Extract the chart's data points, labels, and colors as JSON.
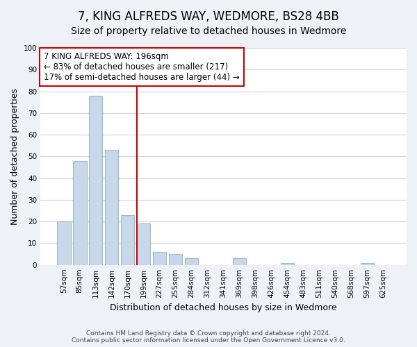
{
  "title": "7, KING ALFREDS WAY, WEDMORE, BS28 4BB",
  "subtitle": "Size of property relative to detached houses in Wedmore",
  "xlabel": "Distribution of detached houses by size in Wedmore",
  "ylabel": "Number of detached properties",
  "bar_labels": [
    "57sqm",
    "85sqm",
    "113sqm",
    "142sqm",
    "170sqm",
    "199sqm",
    "227sqm",
    "255sqm",
    "284sqm",
    "312sqm",
    "341sqm",
    "369sqm",
    "398sqm",
    "426sqm",
    "454sqm",
    "483sqm",
    "511sqm",
    "540sqm",
    "568sqm",
    "597sqm",
    "625sqm"
  ],
  "bar_values": [
    20,
    48,
    78,
    53,
    23,
    19,
    6,
    5,
    3,
    0,
    0,
    3,
    0,
    0,
    1,
    0,
    0,
    0,
    0,
    1,
    0
  ],
  "bar_color": "#c8d8e8",
  "bar_edge_color": "#a0b8cc",
  "highlight_line_index": 5,
  "highlight_line_color": "#cc0000",
  "annotation_line1": "7 KING ALFREDS WAY: 196sqm",
  "annotation_line2": "← 83% of detached houses are smaller (217)",
  "annotation_line3": "17% of semi-detached houses are larger (44) →",
  "annotation_box_edge": "#cc0000",
  "ylim": [
    0,
    100
  ],
  "yticks": [
    0,
    10,
    20,
    30,
    40,
    50,
    60,
    70,
    80,
    90,
    100
  ],
  "bg_color": "#eef2f6",
  "plot_bg_color": "#ffffff",
  "footer_text": "Contains HM Land Registry data © Crown copyright and database right 2024.\nContains public sector information licensed under the Open Government Licence v3.0.",
  "title_fontsize": 12,
  "subtitle_fontsize": 10,
  "annotation_fontsize": 8.5,
  "axis_label_fontsize": 9,
  "tick_fontsize": 7.5,
  "footer_fontsize": 6.5
}
